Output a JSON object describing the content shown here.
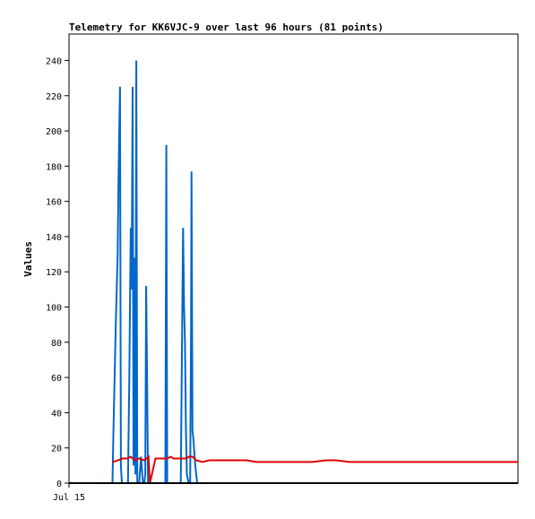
{
  "chart_data": {
    "type": "line",
    "title": "Telemetry for KK6VJC-9 over last 96 hours (81 points)",
    "ylabel": "Values",
    "xlabel": "",
    "ylim": [
      0,
      255
    ],
    "yticks": [
      0,
      20,
      40,
      60,
      80,
      100,
      120,
      140,
      160,
      180,
      200,
      220,
      240
    ],
    "x_tick_labels": [
      {
        "label": "Jul 15",
        "hour": 0
      }
    ],
    "x_range_hours": [
      0,
      96
    ],
    "grid": false,
    "series": [
      {
        "color": "#0066cc",
        "points": [
          [
            9.3,
            0
          ],
          [
            9.5,
            30
          ],
          [
            10.0,
            90
          ],
          [
            10.4,
            130
          ],
          [
            10.6,
            175
          ],
          [
            10.9,
            225
          ],
          [
            11.1,
            10
          ],
          [
            11.3,
            0
          ],
          [
            12.6,
            0
          ],
          [
            12.9,
            60
          ],
          [
            13.2,
            145
          ],
          [
            13.4,
            110
          ],
          [
            13.6,
            225
          ],
          [
            13.8,
            10
          ],
          [
            14.0,
            128
          ],
          [
            14.2,
            5
          ],
          [
            14.4,
            240
          ],
          [
            14.6,
            0
          ],
          [
            15.0,
            0
          ],
          [
            15.4,
            15
          ],
          [
            15.8,
            0
          ],
          [
            16.1,
            0
          ],
          [
            16.3,
            5
          ],
          [
            16.5,
            112
          ],
          [
            16.7,
            55
          ],
          [
            16.9,
            0
          ],
          [
            17.2,
            0
          ],
          [
            20.6,
            0
          ],
          [
            20.8,
            192
          ],
          [
            21.0,
            0
          ],
          [
            23.6,
            0
          ],
          [
            23.9,
            0
          ],
          [
            24.2,
            90
          ],
          [
            24.4,
            145
          ],
          [
            24.6,
            100
          ],
          [
            24.8,
            80
          ],
          [
            25.0,
            30
          ],
          [
            25.2,
            5
          ],
          [
            25.6,
            0
          ],
          [
            25.9,
            0
          ],
          [
            26.1,
            90
          ],
          [
            26.2,
            177
          ],
          [
            26.4,
            30
          ],
          [
            26.6,
            25
          ],
          [
            27.0,
            10
          ],
          [
            27.4,
            0
          ]
        ]
      },
      {
        "color": "#e00000",
        "points": [
          [
            9.3,
            12
          ],
          [
            10.5,
            13
          ],
          [
            11.4,
            14
          ],
          [
            12.4,
            14
          ],
          [
            13.2,
            15
          ],
          [
            14.0,
            13
          ],
          [
            15.0,
            14
          ],
          [
            16.0,
            13
          ],
          [
            16.6,
            14
          ],
          [
            17.0,
            15
          ],
          [
            17.3,
            0
          ],
          [
            18.5,
            14
          ],
          [
            21.0,
            14
          ],
          [
            21.8,
            15
          ],
          [
            22.3,
            14
          ],
          [
            23.6,
            14
          ],
          [
            25.0,
            14
          ],
          [
            25.6,
            15
          ],
          [
            26.4,
            15
          ],
          [
            27.2,
            13
          ],
          [
            28.5,
            12
          ],
          [
            30.0,
            13
          ],
          [
            33.0,
            13
          ],
          [
            38.0,
            13
          ],
          [
            40.0,
            12
          ],
          [
            52.0,
            12
          ],
          [
            55.0,
            13
          ],
          [
            57.0,
            13
          ],
          [
            60.0,
            12
          ],
          [
            65.0,
            12
          ],
          [
            70.0,
            12
          ],
          [
            80.0,
            12
          ],
          [
            96.0,
            12
          ]
        ]
      },
      {
        "color": "#000000",
        "points": [
          [
            0,
            0
          ],
          [
            96,
            0
          ]
        ]
      }
    ]
  }
}
